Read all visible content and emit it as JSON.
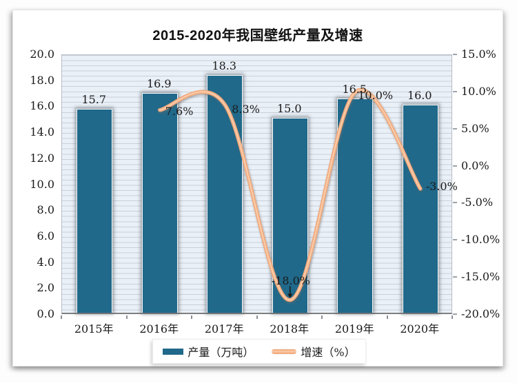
{
  "title": "2015-2020年我国壁纸产量及增速",
  "colors": {
    "bar": "#20698A",
    "line": "#F2AA7E",
    "line_highlight": "#F9CDAA",
    "plot_background": "#EAF0F7",
    "gridline": "#C9D0D9",
    "x_axis_line": "#7F7F7F",
    "label_text": "#1A1A1A"
  },
  "chart_data": {
    "type": "bar+line",
    "title": "2015-2020年我国壁纸产量及增速",
    "categories": [
      "2015年",
      "2016年",
      "2017年",
      "2018年",
      "2019年",
      "2020年"
    ],
    "series": [
      {
        "name": "产量（万吨）",
        "type": "bar",
        "axis": "left",
        "values": [
          15.7,
          16.9,
          18.3,
          15.0,
          16.5,
          16.0
        ],
        "labels": [
          "15.7",
          "16.9",
          "18.3",
          "15.0",
          "16.5",
          "16.0"
        ]
      },
      {
        "name": "增速（%）",
        "type": "line",
        "axis": "right",
        "values": [
          null,
          7.6,
          8.3,
          -18.0,
          10.0,
          -3.0
        ],
        "labels": [
          null,
          "7.6%",
          "8.3%",
          "-18.0%",
          "10.0%",
          "-3.0%"
        ]
      }
    ],
    "left_axis": {
      "min": 0,
      "max": 20,
      "step": 2,
      "ticks": [
        "20.0",
        "18.0",
        "16.0",
        "14.0",
        "12.0",
        "10.0",
        "8.0",
        "6.0",
        "4.0",
        "2.0",
        "0.0"
      ]
    },
    "right_axis": {
      "min": -20,
      "max": 15,
      "step": 5,
      "ticks": [
        "15.0%",
        "10.0%",
        "5.0%",
        "0.0%",
        "-5.0%",
        "-10.0%",
        "-15.0%",
        "-20.0%"
      ]
    },
    "grid": "minor-horizontal",
    "legend_position": "bottom",
    "annotation": {
      "category": "2018年",
      "label": "-18.0%",
      "arrow": "down"
    }
  },
  "legend": {
    "items": [
      {
        "label": "产量（万吨）",
        "swatch": "bar"
      },
      {
        "label": "增速（%）",
        "swatch": "line"
      }
    ]
  }
}
